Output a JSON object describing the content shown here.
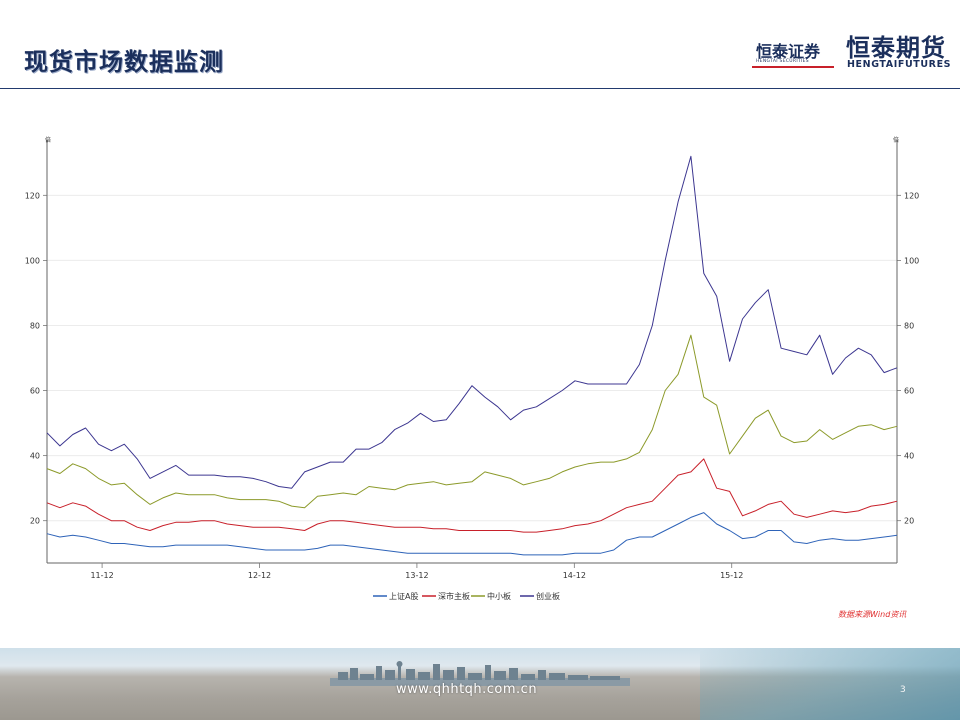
{
  "slide": {
    "title": "现货市场数据监测",
    "logo_securities_cn": "恒泰证券",
    "logo_securities_en": "HENGTAI SECURITIES",
    "logo_futures_cn": "恒泰期货",
    "logo_futures_en": "HENGTAIFUTURES",
    "source_note": "数据来源Wind资讯",
    "footer_url": "www.qhhtqh.com.cn",
    "page_number": "3"
  },
  "chart_data": {
    "type": "line",
    "title": "",
    "xlabel": "",
    "ylabel_left": "倍",
    "ylabel_right": "倍",
    "x_ticks": [
      "11-12",
      "12-12",
      "13-12",
      "14-12",
      "15-12"
    ],
    "x_tick_positions": [
      3.5,
      13.5,
      23.5,
      33.5,
      43.5
    ],
    "y_ticks": [
      20,
      40,
      60,
      80,
      100,
      120
    ],
    "ylim": [
      7,
      137
    ],
    "xlim": [
      0,
      54
    ],
    "grid": "horizontal",
    "legend_position": "bottom",
    "series": [
      {
        "name": "上证A股",
        "color": "#2e63b8",
        "values": [
          16,
          15,
          15.5,
          15,
          14,
          13,
          13,
          12.5,
          12,
          12,
          12.5,
          12.5,
          12.5,
          12.5,
          12.5,
          12,
          11.5,
          11,
          11,
          11,
          11,
          11.5,
          12.5,
          12.5,
          12,
          11.5,
          11,
          10.5,
          10,
          10,
          10,
          10,
          10,
          10,
          10,
          10,
          10,
          9.5,
          9.5,
          9.5,
          9.5,
          10,
          10,
          10,
          11,
          14,
          15,
          15,
          17,
          19,
          21,
          22.5,
          19,
          17,
          14.5,
          15,
          17,
          17,
          13.5,
          13,
          14,
          14.5,
          14,
          14,
          14.5,
          15,
          15.5
        ]
      },
      {
        "name": "深市主板",
        "color": "#c8202a",
        "values": [
          25.5,
          24,
          25.5,
          24.5,
          22,
          20,
          20,
          18,
          17,
          18.5,
          19.5,
          19.5,
          20,
          20,
          19,
          18.5,
          18,
          18,
          18,
          17.5,
          17,
          19,
          20,
          20,
          19.5,
          19,
          18.5,
          18,
          18,
          18,
          17.5,
          17.5,
          17,
          17,
          17,
          17,
          17,
          16.5,
          16.5,
          17,
          17.5,
          18.5,
          19,
          20,
          22,
          24,
          25,
          26,
          30,
          34,
          35,
          39,
          30,
          29,
          21.5,
          23,
          25,
          26,
          22,
          21,
          22,
          23,
          22.5,
          23,
          24.5,
          25,
          26
        ]
      },
      {
        "name": "中小板",
        "color": "#8c9a2a",
        "values": [
          36,
          34.5,
          37.5,
          36,
          33,
          31,
          31.5,
          28,
          25,
          27,
          28.5,
          28,
          28,
          28,
          27,
          26.5,
          26.5,
          26.5,
          26,
          24.5,
          24,
          27.5,
          28,
          28.5,
          28,
          30.5,
          30,
          29.5,
          31,
          31.5,
          32,
          31,
          31.5,
          32,
          35,
          34,
          33,
          31,
          32,
          33,
          35,
          36.5,
          37.5,
          38,
          38,
          39,
          41,
          48,
          60,
          65,
          77,
          58,
          55.5,
          40.5,
          46,
          51.5,
          54,
          46,
          44,
          44.5,
          48,
          45,
          47,
          49,
          49.5,
          48,
          49
        ]
      },
      {
        "name": "创业板",
        "color": "#3c3690",
        "values": [
          47,
          43,
          46.5,
          48.5,
          43.5,
          41.5,
          43.5,
          39,
          33,
          35,
          37,
          34,
          34,
          34,
          33.5,
          33.5,
          33,
          32,
          30.5,
          30,
          35,
          36.5,
          38,
          38,
          42,
          42,
          44,
          48,
          50,
          53,
          50.5,
          51,
          56,
          61.5,
          58,
          55,
          51,
          54,
          55,
          57.5,
          60,
          63,
          62,
          62,
          62,
          62,
          68,
          80,
          100,
          118,
          132,
          96,
          89,
          69,
          82,
          87,
          91,
          73,
          72,
          71,
          77,
          65,
          70,
          73,
          71,
          65.5,
          67
        ]
      }
    ]
  }
}
